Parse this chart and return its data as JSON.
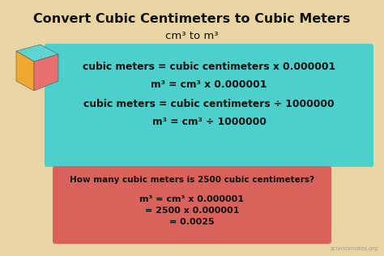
{
  "title": "Convert Cubic Centimeters to Cubic Meters",
  "subtitle": "cm³ to m³",
  "bg_color": "#e8d5a3",
  "title_color": "#111111",
  "cyan_box_color": "#4dcfcc",
  "red_box_color": "#d9635a",
  "cyan_line1": "cubic meters = cubic centimeters x 0.000001",
  "cyan_line2": "m³ = cm³ x 0.000001",
  "cyan_line3": "cubic meters = cubic centimeters ÷ 1000000",
  "cyan_line4": "m³ = cm³ ÷ 1000000",
  "red_question": "How many cubic meters is 2500 cubic centimeters?",
  "red_line1": "m³ = cm³ x 0.000001",
  "red_line2": "= 2500 x 0.000001",
  "red_line3": "= 0.0025",
  "watermark": "sciencenotes.org",
  "cube_top_color": "#5dd5d0",
  "cube_left_color": "#f0a830",
  "cube_right_color": "#e87070",
  "figsize": [
    4.74,
    3.16
  ],
  "dpi": 100
}
